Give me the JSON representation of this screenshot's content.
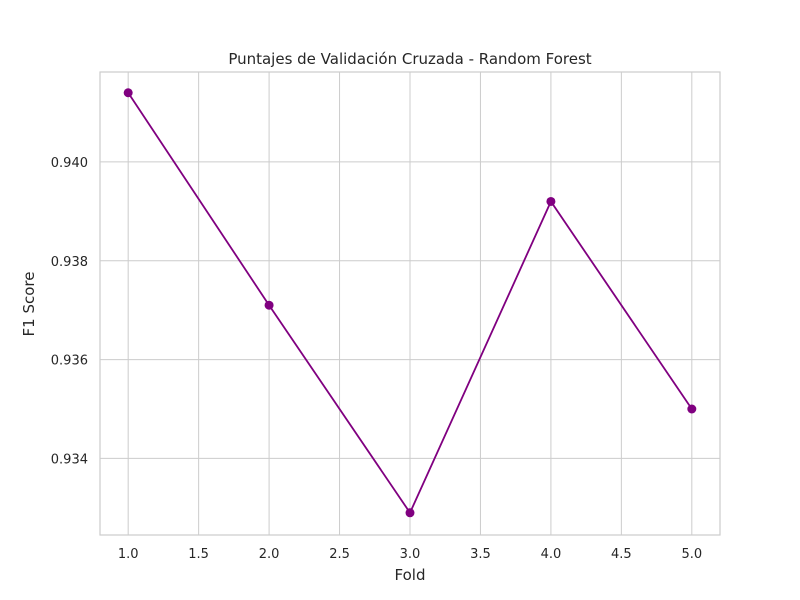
{
  "chart_data": {
    "type": "line",
    "title": "Puntajes de Validación Cruzada - Random Forest",
    "xlabel": "Fold",
    "ylabel": "F1 Score",
    "x": [
      1,
      2,
      3,
      4,
      5
    ],
    "series": [
      {
        "values": [
          0.9414,
          0.9371,
          0.9329,
          0.9392,
          0.935
        ]
      }
    ],
    "xlim": [
      0.8,
      5.2
    ],
    "ylim": [
      0.93245,
      0.94182
    ],
    "xticks": [
      "1.0",
      "1.5",
      "2.0",
      "2.5",
      "3.0",
      "3.5",
      "4.0",
      "4.5",
      "5.0"
    ],
    "xtick_values": [
      1.0,
      1.5,
      2.0,
      2.5,
      3.0,
      3.5,
      4.0,
      4.5,
      5.0
    ],
    "yticks": [
      "0.934",
      "0.936",
      "0.938",
      "0.940"
    ],
    "ytick_values": [
      0.934,
      0.936,
      0.938,
      0.94
    ],
    "grid": true,
    "line_color": "#800080",
    "marker": "circle"
  }
}
